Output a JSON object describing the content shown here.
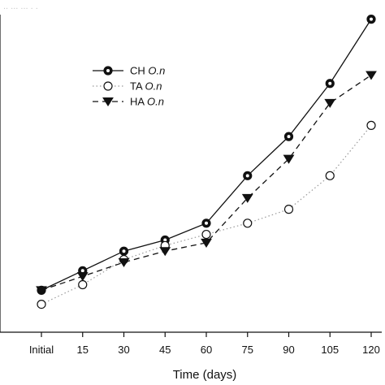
{
  "top_fragment": "..  ...  ... . .",
  "chart_data": {
    "type": "line",
    "xlabel": "Time (days)",
    "ylabel": "",
    "categories": [
      "Initial",
      "15",
      "30",
      "45",
      "60",
      "75",
      "90",
      "105",
      "120"
    ],
    "ylim": [
      0,
      10
    ],
    "grid": false,
    "legend_position": "top-left",
    "series": [
      {
        "name_prefix": "CH",
        "name_italic": "O.n",
        "marker": "filled-circle",
        "line_style": "solid",
        "color": "#111111",
        "values": [
          1.5,
          2.2,
          2.9,
          3.3,
          3.9,
          5.6,
          7.0,
          8.9,
          11.2
        ]
      },
      {
        "name_prefix": "TA",
        "name_italic": "O.n",
        "marker": "open-circle",
        "line_style": "dotted",
        "color": "#888888",
        "values": [
          1.0,
          1.7,
          2.6,
          3.1,
          3.5,
          3.9,
          4.4,
          5.6,
          7.4
        ]
      },
      {
        "name_prefix": "HA",
        "name_italic": "O.n",
        "marker": "down-triangle",
        "line_style": "dashed",
        "color": "#111111",
        "values": [
          1.5,
          2.0,
          2.5,
          2.9,
          3.2,
          4.8,
          6.2,
          8.2,
          9.2
        ]
      }
    ]
  }
}
